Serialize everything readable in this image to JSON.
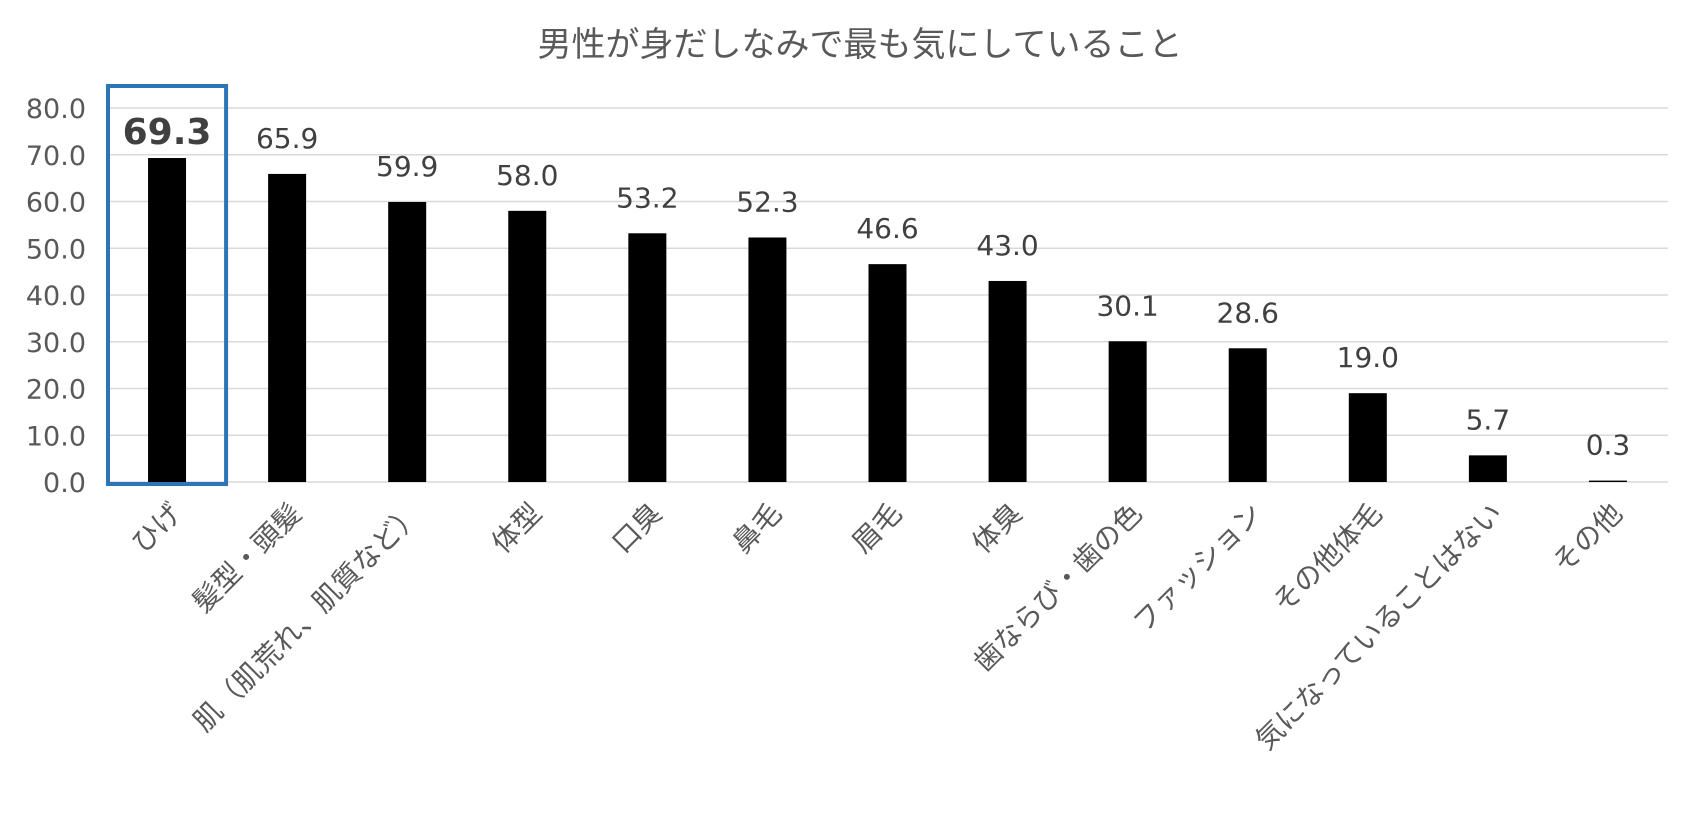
{
  "chart_data": {
    "type": "bar",
    "title": "男性が身だしなみで最も気にしていること",
    "categories": [
      "ひげ",
      "髪型・頭髪",
      "肌（肌荒れ、肌質など）",
      "体型",
      "口臭",
      "鼻毛",
      "眉毛",
      "体臭",
      "歯ならび・歯の色",
      "ファッション",
      "その他体毛",
      "気になっていることはない",
      "その他"
    ],
    "values": [
      69.3,
      65.9,
      59.9,
      58.0,
      53.2,
      52.3,
      46.6,
      43.0,
      30.1,
      28.6,
      19.0,
      5.7,
      0.3
    ],
    "value_labels": [
      "69.3",
      "65.9",
      "59.9",
      "58.0",
      "53.2",
      "52.3",
      "46.6",
      "43.0",
      "30.1",
      "28.6",
      "19.0",
      "5.7",
      "0.3"
    ],
    "ytick_labels": [
      "0.0",
      "10.0",
      "20.0",
      "30.0",
      "40.0",
      "50.0",
      "60.0",
      "70.0",
      "80.0"
    ],
    "ylim": [
      0,
      80
    ],
    "grid": true,
    "legend": "none",
    "highlight_index": 0,
    "bar_color": "#000000",
    "highlight_color": "#2E75B6"
  }
}
